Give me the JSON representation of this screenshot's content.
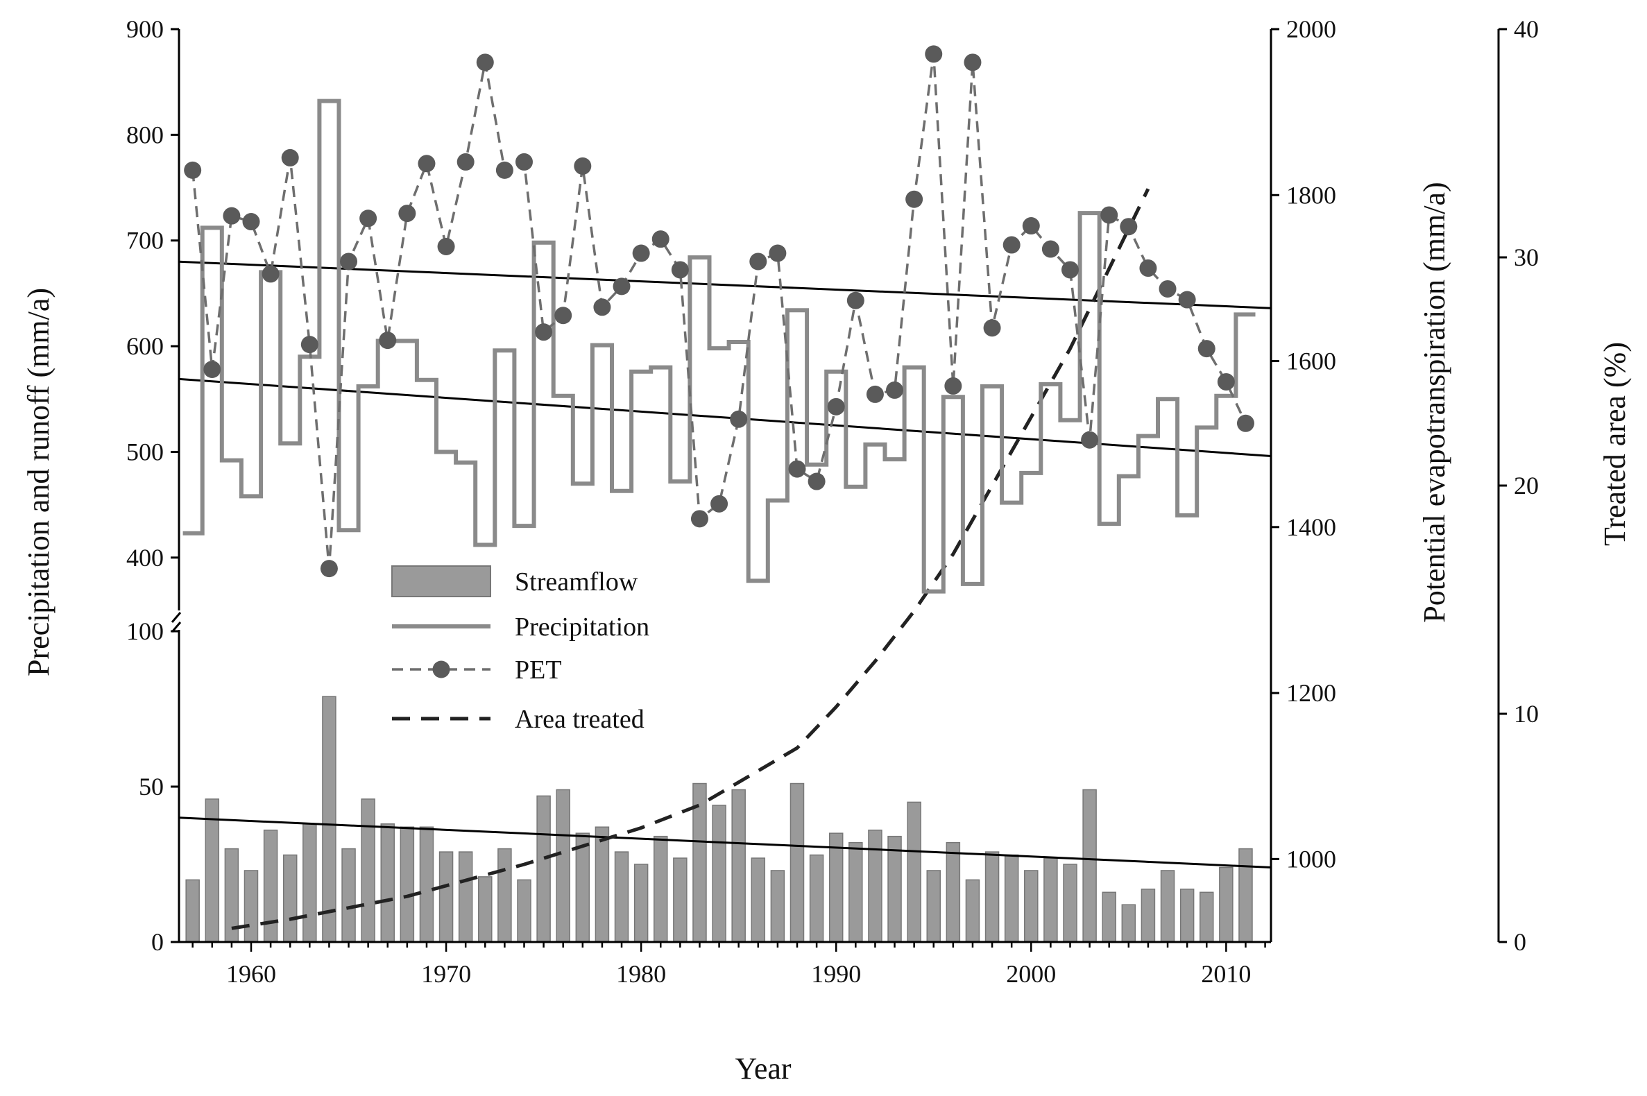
{
  "chart_data": {
    "type": "bar+line",
    "title": "",
    "xlabel": "Year",
    "ylabel_left": "Precipitation and runoff (mm/a)",
    "ylabel_right_pet": "Potential evapotranspiration (mm/a)",
    "ylabel_right_treated": "Treated area (%)",
    "x_range": [
      1956.3,
      2012.3
    ],
    "x_ticks": [
      "1960",
      "1970",
      "1980",
      "1990",
      "2000",
      "2010"
    ],
    "left_axis_upper": {
      "range": [
        350,
        900
      ],
      "ticks": [
        "400",
        "500",
        "600",
        "700",
        "800",
        "900"
      ]
    },
    "left_axis_lower": {
      "range": [
        0,
        100
      ],
      "ticks": [
        "0",
        "50",
        "100"
      ]
    },
    "pet_axis": {
      "range": [
        900,
        2000
      ],
      "ticks": [
        "1000",
        "1200",
        "1400",
        "1600",
        "1800",
        "2000"
      ]
    },
    "treated_axis": {
      "range": [
        0,
        40
      ],
      "ticks": [
        "0",
        "10",
        "20",
        "30",
        "40"
      ]
    },
    "years": [
      1957,
      1958,
      1959,
      1960,
      1961,
      1962,
      1963,
      1964,
      1965,
      1966,
      1967,
      1968,
      1969,
      1970,
      1971,
      1972,
      1973,
      1974,
      1975,
      1976,
      1977,
      1978,
      1979,
      1980,
      1981,
      1982,
      1983,
      1984,
      1985,
      1986,
      1987,
      1988,
      1989,
      1990,
      1991,
      1992,
      1993,
      1994,
      1995,
      1996,
      1997,
      1998,
      1999,
      2000,
      2001,
      2002,
      2003,
      2004,
      2005,
      2006,
      2007,
      2008,
      2009,
      2010,
      2011
    ],
    "series": [
      {
        "name": "Streamflow",
        "kind": "bar",
        "axis": "left_lower",
        "values": [
          20,
          46,
          30,
          23,
          36,
          28,
          38,
          79,
          30,
          46,
          38,
          37,
          37,
          29,
          29,
          21,
          30,
          20,
          47,
          49,
          35,
          37,
          29,
          25,
          34,
          27,
          51,
          44,
          49,
          27,
          23,
          51,
          28,
          35,
          32,
          36,
          34,
          45,
          23,
          32,
          20,
          29,
          28,
          23,
          27,
          25,
          49,
          16,
          12,
          17,
          23,
          17,
          16,
          24,
          30
        ]
      },
      {
        "name": "Precipitation",
        "kind": "step",
        "axis": "left_upper",
        "values": [
          423,
          712,
          492,
          458,
          670,
          508,
          590,
          832,
          426,
          562,
          605,
          605,
          568,
          500,
          490,
          412,
          596,
          430,
          698,
          553,
          470,
          601,
          463,
          576,
          580,
          472,
          684,
          598,
          604,
          378,
          454,
          634,
          488,
          576,
          467,
          507,
          493,
          580,
          368,
          552,
          375,
          562,
          452,
          480,
          564,
          530,
          726,
          432,
          477,
          515,
          550,
          440,
          523,
          553,
          630
        ]
      },
      {
        "name": "PET",
        "kind": "line-marker",
        "axis": "pet",
        "values": [
          1830,
          1590,
          1775,
          1768,
          1705,
          1845,
          1620,
          1350,
          1720,
          1772,
          1625,
          1778,
          1838,
          1738,
          1840,
          1960,
          1830,
          1840,
          1635,
          1655,
          1835,
          1665,
          1690,
          1730,
          1747,
          1710,
          1410,
          1428,
          1530,
          1720,
          1730,
          1470,
          1455,
          1545,
          1673,
          1560,
          1565,
          1795,
          1970,
          1570,
          1960,
          1640,
          1740,
          1763,
          1735,
          1710,
          1505,
          1776,
          1762,
          1712,
          1687,
          1674,
          1615,
          1575,
          1525
        ]
      },
      {
        "name": "Area treated",
        "kind": "dashed-line",
        "axis": "treated",
        "x": [
          1959,
          1962,
          1965,
          1968,
          1971,
          1974,
          1977,
          1980,
          1983,
          1985,
          1988,
          1990,
          1992,
          1994,
          1996,
          1998,
          2000,
          2002,
          2004,
          2006
        ],
        "values": [
          0.6,
          1.0,
          1.5,
          2.0,
          2.7,
          3.4,
          4.2,
          5.0,
          6.0,
          7.0,
          8.5,
          10.3,
          12.3,
          14.5,
          17.0,
          20.0,
          23.0,
          26.0,
          29.5,
          33.0
        ]
      }
    ],
    "trend_lines": [
      {
        "name": "Precipitation trend upper",
        "axis": "left_upper",
        "x": [
          1956.3,
          2012.3
        ],
        "y": [
          680,
          636
        ]
      },
      {
        "name": "Precipitation trend lower",
        "axis": "left_upper",
        "x": [
          1956.3,
          2012.3
        ],
        "y": [
          569,
          496
        ]
      },
      {
        "name": "Streamflow trend",
        "axis": "left_lower",
        "x": [
          1956.3,
          2012.3
        ],
        "y": [
          40,
          24
        ]
      }
    ],
    "legend": {
      "position": "center-left",
      "entries": [
        "Streamflow",
        "Precipitation",
        "PET",
        "Area treated"
      ]
    },
    "colors": {
      "bar_fill": "#9a9a9a",
      "bar_stroke": "#777777",
      "precip_line": "#8a8a8a",
      "pet_line": "#6e6e6e",
      "pet_marker": "#5a5a5a",
      "treated_line": "#222222",
      "trend_line": "#000000",
      "axis": "#000000"
    }
  }
}
